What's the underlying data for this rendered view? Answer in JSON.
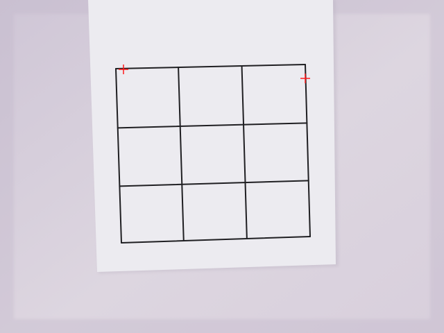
{
  "scene": {
    "description_visible_text": "",
    "background": {
      "wall_color_left": "#cfc6d6",
      "wall_color_right": "#ddd6e0",
      "wall_color_bottom": "#d8cfdc"
    },
    "paper": {
      "color": "#ecebf0",
      "edge_shadow_color": "#bdb5c4"
    },
    "grid": {
      "rows": 3,
      "cols": 3,
      "line_color": "#1f1f22"
    },
    "markers": {
      "color": "#ff1a1a",
      "icon": "crosshair-plus-icon",
      "count": 2
    }
  }
}
